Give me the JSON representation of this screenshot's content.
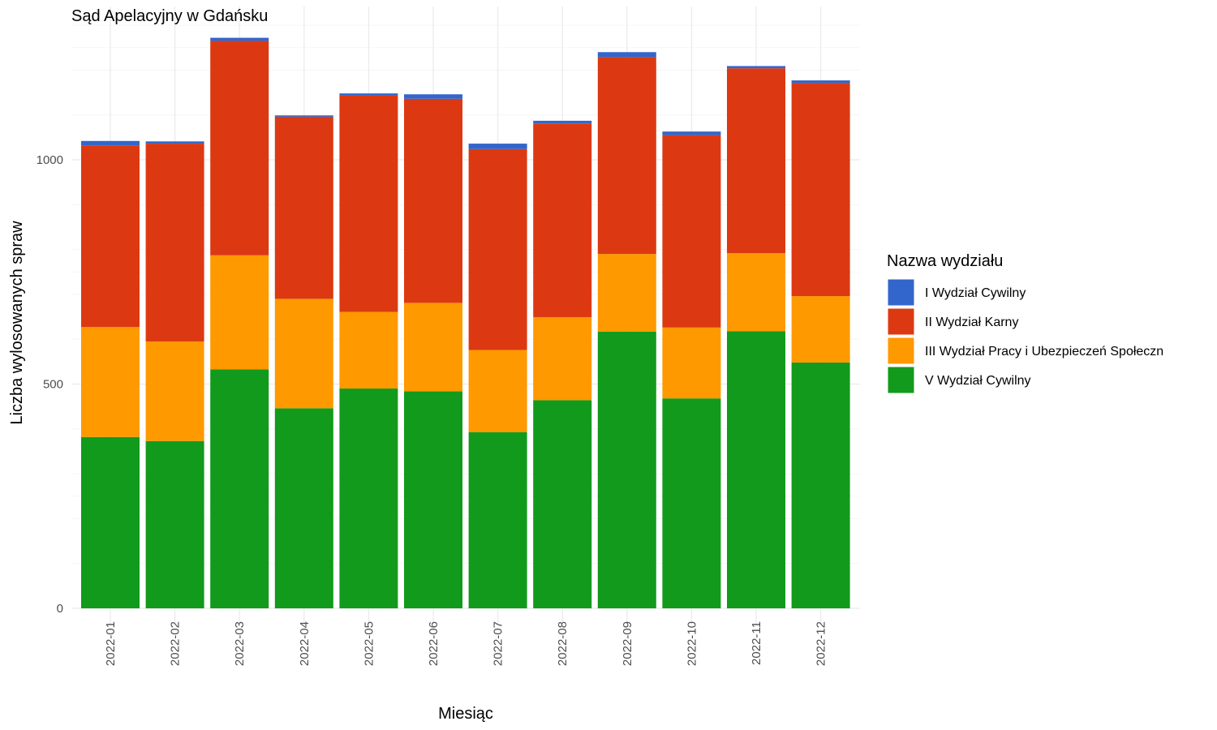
{
  "chart_data": {
    "type": "bar",
    "stacked": true,
    "title": "Sąd Apelacyjny w Gdańsku",
    "xlabel": "Miesiąc",
    "ylabel": "Liczba wylosowanych spraw",
    "ylim": [
      0,
      1330
    ],
    "yticks": [
      0,
      500,
      1000
    ],
    "grid": true,
    "legend_position": "right",
    "legend_title": "Nazwa wydziału",
    "categories": [
      "2022-01",
      "2022-02",
      "2022-03",
      "2022-04",
      "2022-05",
      "2022-06",
      "2022-07",
      "2022-08",
      "2022-09",
      "2022-10",
      "2022-11",
      "2022-12"
    ],
    "series": [
      {
        "name": "V Wydział Cywilny",
        "color": "#129a1c",
        "values": [
          382,
          373,
          533,
          446,
          490,
          484,
          393,
          464,
          617,
          468,
          618,
          548
        ]
      },
      {
        "name": "III Wydział Pracy i Ubezpieczeń Społeczn",
        "color": "#ff9900",
        "values": [
          245,
          222,
          254,
          244,
          171,
          197,
          183,
          185,
          173,
          158,
          174,
          148
        ]
      },
      {
        "name": "II Wydział Karny",
        "color": "#dc3912",
        "values": [
          405,
          441,
          478,
          406,
          482,
          455,
          448,
          432,
          439,
          429,
          412,
          475
        ]
      },
      {
        "name": "I Wydział Cywilny",
        "color": "#3366cc",
        "values": [
          10,
          5,
          7,
          3,
          5,
          10,
          12,
          6,
          11,
          8,
          5,
          6
        ]
      }
    ],
    "legend_order": [
      "I Wydział Cywilny",
      "II Wydział Karny",
      "III Wydział Pracy i Ubezpieczeń Społeczn",
      "V Wydział Cywilny"
    ]
  }
}
